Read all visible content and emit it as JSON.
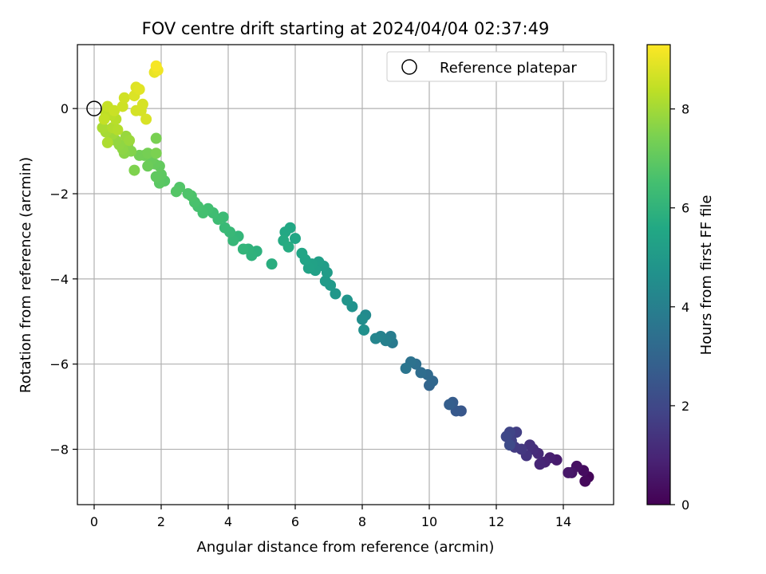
{
  "chart_data": {
    "type": "scatter",
    "title": "FOV centre drift starting at 2024/04/04 02:37:49",
    "xlabel": "Angular distance from reference (arcmin)",
    "ylabel": "Rotation from reference (arcmin)",
    "xlim": [
      -0.5,
      15.5
    ],
    "ylim": [
      -9.3,
      1.5
    ],
    "xticks": [
      "0",
      "2",
      "4",
      "6",
      "8",
      "10",
      "12",
      "14"
    ],
    "yticks": [
      "0",
      "−2",
      "−4",
      "−6",
      "−8"
    ],
    "grid": true,
    "legend": {
      "placement": "top-right",
      "entries": [
        "Reference platepar"
      ]
    },
    "reference_point": {
      "x": 0,
      "y": 0
    },
    "colorbar": {
      "label": "Hours from first FF file",
      "range": [
        0,
        9.3
      ],
      "ticks": [
        "0",
        "2",
        "4",
        "6",
        "8"
      ],
      "colormap": "viridis"
    },
    "points": [
      {
        "x": 14.75,
        "y": -8.65,
        "t": 0.1
      },
      {
        "x": 14.65,
        "y": -8.75,
        "t": 0.2
      },
      {
        "x": 14.6,
        "y": -8.5,
        "t": 0.3
      },
      {
        "x": 14.4,
        "y": -8.4,
        "t": 0.4
      },
      {
        "x": 14.25,
        "y": -8.55,
        "t": 0.5
      },
      {
        "x": 14.15,
        "y": -8.55,
        "t": 0.6
      },
      {
        "x": 13.8,
        "y": -8.25,
        "t": 0.7
      },
      {
        "x": 13.6,
        "y": -8.2,
        "t": 0.8
      },
      {
        "x": 13.45,
        "y": -8.3,
        "t": 0.9
      },
      {
        "x": 13.3,
        "y": -8.35,
        "t": 1.0
      },
      {
        "x": 13.25,
        "y": -8.1,
        "t": 1.1
      },
      {
        "x": 13.1,
        "y": -8.0,
        "t": 1.2
      },
      {
        "x": 13.0,
        "y": -7.9,
        "t": 1.3
      },
      {
        "x": 12.9,
        "y": -8.15,
        "t": 1.4
      },
      {
        "x": 12.75,
        "y": -8.0,
        "t": 1.5
      },
      {
        "x": 12.55,
        "y": -7.95,
        "t": 1.6
      },
      {
        "x": 12.6,
        "y": -7.6,
        "t": 1.7
      },
      {
        "x": 12.45,
        "y": -7.8,
        "t": 1.8
      },
      {
        "x": 12.4,
        "y": -7.6,
        "t": 1.9
      },
      {
        "x": 12.3,
        "y": -7.7,
        "t": 2.0
      },
      {
        "x": 12.4,
        "y": -7.9,
        "t": 2.1
      },
      {
        "x": 10.95,
        "y": -7.1,
        "t": 2.5
      },
      {
        "x": 10.8,
        "y": -7.1,
        "t": 2.6
      },
      {
        "x": 10.7,
        "y": -6.9,
        "t": 2.7
      },
      {
        "x": 10.6,
        "y": -6.95,
        "t": 2.8
      },
      {
        "x": 10.0,
        "y": -6.5,
        "t": 3.0
      },
      {
        "x": 10.1,
        "y": -6.4,
        "t": 3.1
      },
      {
        "x": 9.95,
        "y": -6.25,
        "t": 3.2
      },
      {
        "x": 9.75,
        "y": -6.2,
        "t": 3.3
      },
      {
        "x": 9.6,
        "y": -6.0,
        "t": 3.4
      },
      {
        "x": 9.45,
        "y": -5.95,
        "t": 3.5
      },
      {
        "x": 9.3,
        "y": -6.1,
        "t": 3.6
      },
      {
        "x": 8.9,
        "y": -5.5,
        "t": 3.8
      },
      {
        "x": 8.85,
        "y": -5.35,
        "t": 3.9
      },
      {
        "x": 8.7,
        "y": -5.45,
        "t": 4.0
      },
      {
        "x": 8.55,
        "y": -5.35,
        "t": 4.1
      },
      {
        "x": 8.4,
        "y": -5.4,
        "t": 4.2
      },
      {
        "x": 8.1,
        "y": -4.85,
        "t": 4.4
      },
      {
        "x": 8.0,
        "y": -4.95,
        "t": 4.5
      },
      {
        "x": 8.05,
        "y": -5.2,
        "t": 4.6
      },
      {
        "x": 7.7,
        "y": -4.65,
        "t": 4.7
      },
      {
        "x": 7.55,
        "y": -4.5,
        "t": 4.8
      },
      {
        "x": 7.2,
        "y": -4.35,
        "t": 4.9
      },
      {
        "x": 7.05,
        "y": -4.15,
        "t": 5.0
      },
      {
        "x": 6.9,
        "y": -4.05,
        "t": 5.05
      },
      {
        "x": 6.95,
        "y": -3.85,
        "t": 5.1
      },
      {
        "x": 6.85,
        "y": -3.7,
        "t": 5.15
      },
      {
        "x": 6.7,
        "y": -3.6,
        "t": 5.2
      },
      {
        "x": 6.6,
        "y": -3.8,
        "t": 5.25
      },
      {
        "x": 6.5,
        "y": -3.65,
        "t": 5.3
      },
      {
        "x": 6.4,
        "y": -3.75,
        "t": 5.35
      },
      {
        "x": 6.3,
        "y": -3.55,
        "t": 5.4
      },
      {
        "x": 6.2,
        "y": -3.4,
        "t": 5.45
      },
      {
        "x": 6.0,
        "y": -3.05,
        "t": 5.5
      },
      {
        "x": 5.85,
        "y": -2.8,
        "t": 5.55
      },
      {
        "x": 5.7,
        "y": -2.9,
        "t": 5.6
      },
      {
        "x": 5.65,
        "y": -3.1,
        "t": 5.65
      },
      {
        "x": 5.8,
        "y": -3.25,
        "t": 5.7
      },
      {
        "x": 5.3,
        "y": -3.65,
        "t": 5.8
      },
      {
        "x": 4.85,
        "y": -3.35,
        "t": 5.9
      },
      {
        "x": 4.7,
        "y": -3.45,
        "t": 5.95
      },
      {
        "x": 4.6,
        "y": -3.3,
        "t": 6.0
      },
      {
        "x": 4.45,
        "y": -3.3,
        "t": 6.05
      },
      {
        "x": 4.3,
        "y": -3.0,
        "t": 6.1
      },
      {
        "x": 4.15,
        "y": -3.1,
        "t": 6.15
      },
      {
        "x": 4.05,
        "y": -2.9,
        "t": 6.2
      },
      {
        "x": 3.9,
        "y": -2.8,
        "t": 6.25
      },
      {
        "x": 3.85,
        "y": -2.55,
        "t": 6.3
      },
      {
        "x": 3.7,
        "y": -2.6,
        "t": 6.35
      },
      {
        "x": 3.55,
        "y": -2.45,
        "t": 6.4
      },
      {
        "x": 3.4,
        "y": -2.35,
        "t": 6.45
      },
      {
        "x": 3.25,
        "y": -2.45,
        "t": 6.5
      },
      {
        "x": 3.1,
        "y": -2.3,
        "t": 6.55
      },
      {
        "x": 3.0,
        "y": -2.2,
        "t": 6.6
      },
      {
        "x": 2.9,
        "y": -2.05,
        "t": 6.65
      },
      {
        "x": 2.8,
        "y": -2.0,
        "t": 6.7
      },
      {
        "x": 2.55,
        "y": -1.85,
        "t": 6.75
      },
      {
        "x": 2.45,
        "y": -1.95,
        "t": 6.8
      },
      {
        "x": 2.1,
        "y": -1.7,
        "t": 6.85
      },
      {
        "x": 1.95,
        "y": -1.75,
        "t": 6.9
      },
      {
        "x": 2.0,
        "y": -1.55,
        "t": 6.95
      },
      {
        "x": 1.85,
        "y": -1.6,
        "t": 7.0
      },
      {
        "x": 1.95,
        "y": -1.35,
        "t": 7.05
      },
      {
        "x": 1.8,
        "y": -1.3,
        "t": 7.1
      },
      {
        "x": 1.7,
        "y": -1.2,
        "t": 7.15
      },
      {
        "x": 1.6,
        "y": -1.35,
        "t": 7.2
      },
      {
        "x": 1.5,
        "y": -1.1,
        "t": 7.25
      },
      {
        "x": 1.35,
        "y": -1.1,
        "t": 7.3
      },
      {
        "x": 1.6,
        "y": -1.05,
        "t": 7.35
      },
      {
        "x": 1.85,
        "y": -0.7,
        "t": 7.4
      },
      {
        "x": 1.85,
        "y": -1.05,
        "t": 7.45
      },
      {
        "x": 1.2,
        "y": -1.45,
        "t": 7.5
      },
      {
        "x": 1.1,
        "y": -1.0,
        "t": 7.55
      },
      {
        "x": 1.0,
        "y": -0.85,
        "t": 7.6
      },
      {
        "x": 0.9,
        "y": -1.05,
        "t": 7.65
      },
      {
        "x": 0.85,
        "y": -0.95,
        "t": 7.7
      },
      {
        "x": 0.75,
        "y": -0.85,
        "t": 7.75
      },
      {
        "x": 0.65,
        "y": -0.75,
        "t": 7.8
      },
      {
        "x": 0.95,
        "y": -0.65,
        "t": 7.85
      },
      {
        "x": 1.05,
        "y": -0.75,
        "t": 7.9
      },
      {
        "x": 0.55,
        "y": -0.6,
        "t": 7.95
      },
      {
        "x": 0.45,
        "y": -0.5,
        "t": 8.0
      },
      {
        "x": 0.35,
        "y": -0.55,
        "t": 8.05
      },
      {
        "x": 0.25,
        "y": -0.45,
        "t": 8.1
      },
      {
        "x": 0.4,
        "y": -0.8,
        "t": 8.15
      },
      {
        "x": 0.55,
        "y": -0.45,
        "t": 8.2
      },
      {
        "x": 0.7,
        "y": -0.5,
        "t": 8.25
      },
      {
        "x": 0.65,
        "y": -0.25,
        "t": 8.3
      },
      {
        "x": 0.5,
        "y": -0.15,
        "t": 8.35
      },
      {
        "x": 0.35,
        "y": -0.1,
        "t": 8.4
      },
      {
        "x": 0.3,
        "y": -0.25,
        "t": 8.45
      },
      {
        "x": 0.4,
        "y": 0.05,
        "t": 8.5
      },
      {
        "x": 0.6,
        "y": -0.05,
        "t": 8.55
      },
      {
        "x": 0.85,
        "y": 0.05,
        "t": 8.6
      },
      {
        "x": 0.9,
        "y": 0.25,
        "t": 8.65
      },
      {
        "x": 1.25,
        "y": -0.05,
        "t": 8.7
      },
      {
        "x": 1.4,
        "y": -0.05,
        "t": 8.72
      },
      {
        "x": 1.45,
        "y": 0.1,
        "t": 8.74
      },
      {
        "x": 1.55,
        "y": -0.25,
        "t": 8.76
      },
      {
        "x": 1.2,
        "y": 0.3,
        "t": 8.8
      },
      {
        "x": 1.25,
        "y": 0.5,
        "t": 8.85
      },
      {
        "x": 1.35,
        "y": 0.45,
        "t": 8.9
      },
      {
        "x": 1.8,
        "y": 0.85,
        "t": 9.0
      },
      {
        "x": 1.9,
        "y": 0.9,
        "t": 9.1
      },
      {
        "x": 1.85,
        "y": 1.0,
        "t": 9.2
      }
    ]
  }
}
